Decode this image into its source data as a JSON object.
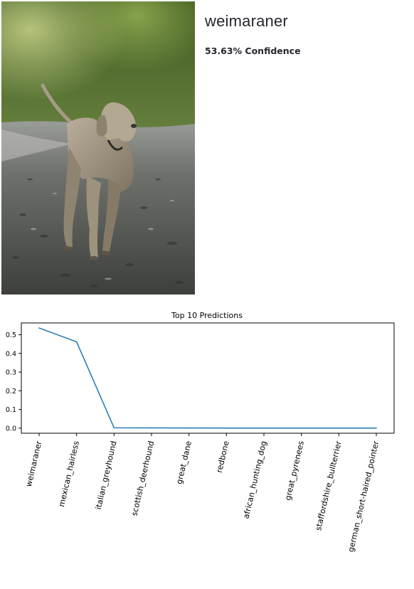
{
  "prediction": {
    "label": "weimaraner",
    "confidence_text": "53.63% Confidence"
  },
  "image": {
    "subject": "weimaraner dog running on gravel path",
    "palette": {
      "foliage": "#4f6a2e",
      "path": "#6a6e6a",
      "dog": "#a59a86"
    }
  },
  "chart_data": {
    "type": "line",
    "title": "Top 10 Predictions",
    "xlabel": "",
    "ylabel": "",
    "categories": [
      "weimaraner",
      "mexican_hairless",
      "italian_greyhound",
      "scottish_deerhound",
      "great_dane",
      "redbone",
      "african_hunting_dog",
      "great_pyrenees",
      "staffordshire_bullterrier",
      "german_short-haired_pointer"
    ],
    "values": [
      0.536,
      0.462,
      0.002,
      0.0015,
      0.001,
      0.0008,
      0.0007,
      0.0006,
      0.0005,
      0.0004
    ],
    "ylim": [
      -0.027,
      0.563
    ],
    "yticks": [
      "0.0",
      "0.1",
      "0.2",
      "0.3",
      "0.4",
      "0.5"
    ],
    "line_color": "#1f77b4",
    "grid": false
  }
}
